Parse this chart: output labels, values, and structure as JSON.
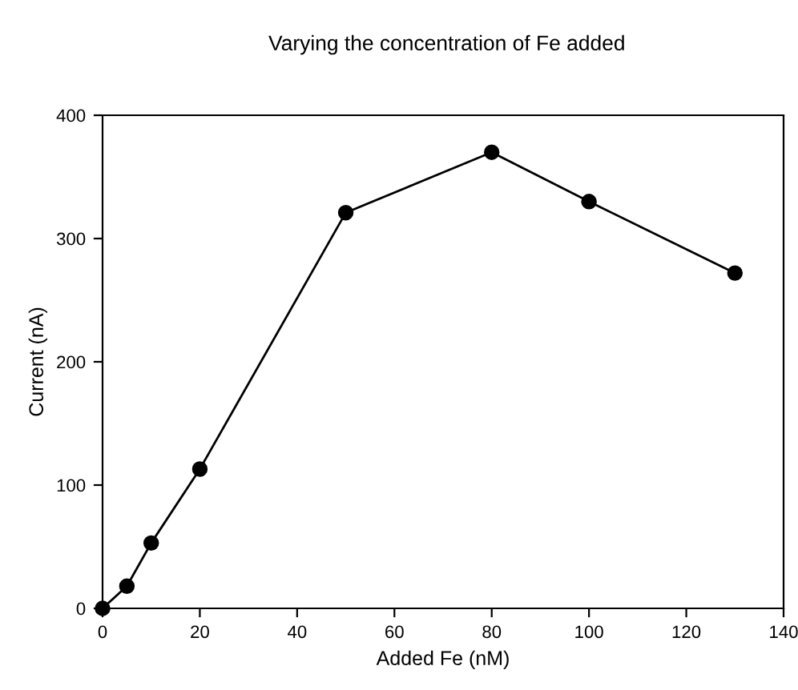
{
  "chart_data": {
    "type": "line",
    "title": "Varying the concentration of Fe added",
    "xlabel": "Added Fe (nM)",
    "ylabel": "Current (nA)",
    "x": [
      0,
      5,
      10,
      20,
      50,
      80,
      100,
      130
    ],
    "series": [
      {
        "color": "#000000",
        "values": [
          0,
          18,
          53,
          113,
          321,
          370,
          330,
          272
        ]
      }
    ],
    "xlim": [
      0,
      140
    ],
    "ylim": [
      0,
      400
    ],
    "xticks": [
      0,
      20,
      40,
      60,
      80,
      100,
      120,
      140
    ],
    "yticks": [
      0,
      100,
      200,
      300,
      400
    ],
    "grid": false,
    "legend": false,
    "marker": "circle",
    "line_style": "solid"
  }
}
